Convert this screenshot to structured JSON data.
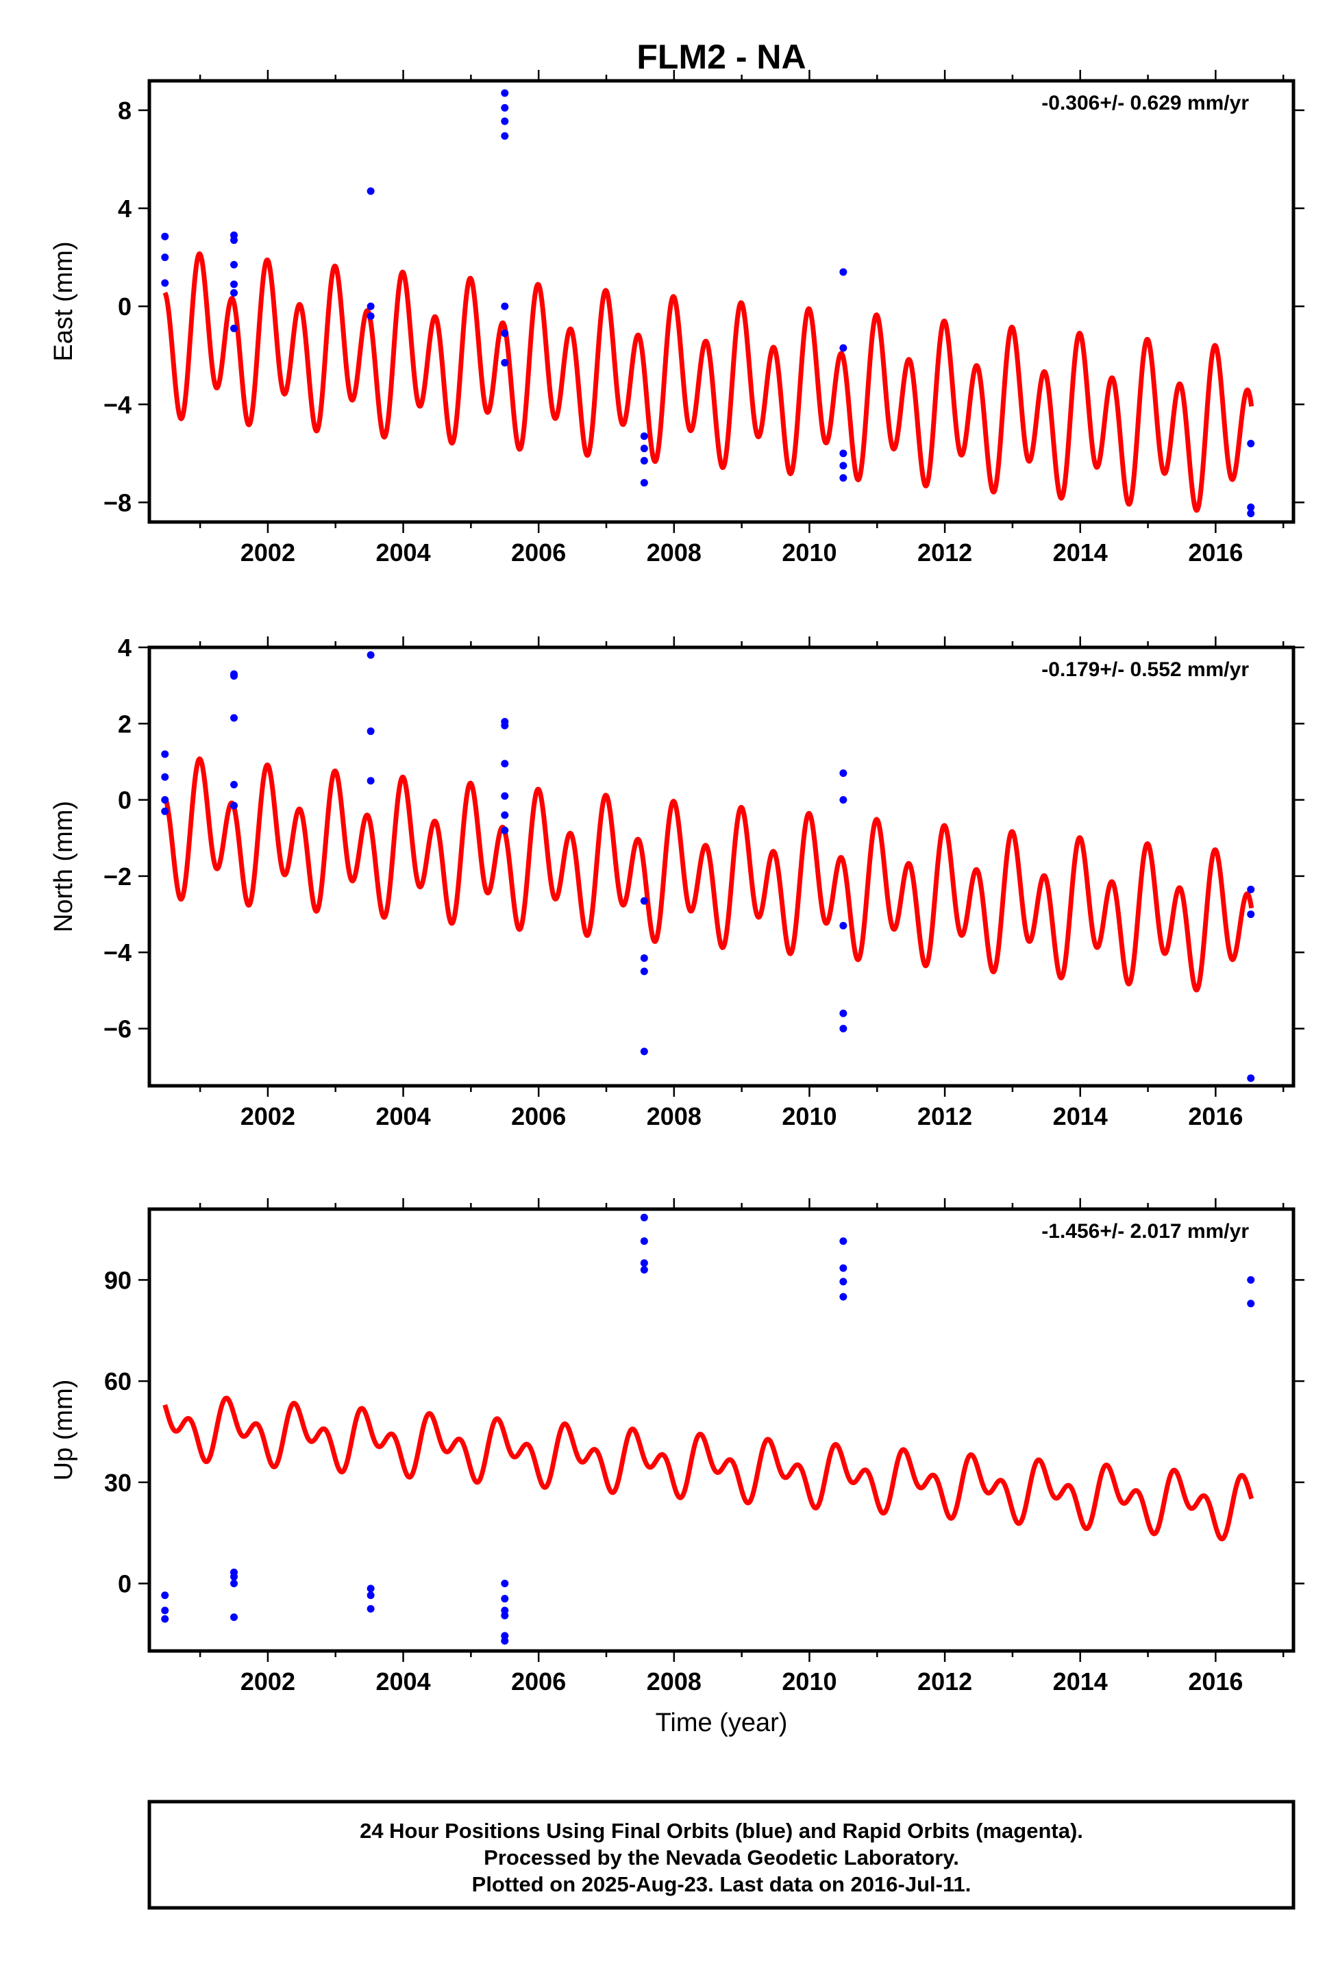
{
  "title": "FLM2 - NA",
  "colors": {
    "fit": "#ff0000",
    "final_orbits": "#0000ff",
    "rapid_orbits": "#ff00ff",
    "frame": "#000000"
  },
  "footer": {
    "line1": "24 Hour Positions Using Final Orbits (blue) and Rapid Orbits (magenta).",
    "line2": "Processed by the Nevada Geodetic Laboratory.",
    "line3": "Plotted on 2025-Aug-23. Last data on 2016-Jul-11."
  },
  "chart_data": [
    {
      "type": "scatter",
      "component": "east",
      "ylabel": "East (mm)",
      "xlabel": "",
      "rate_label": "-0.306+/- 0.629 mm/yr",
      "xlim": [
        2000.25,
        2017.15
      ],
      "ylim": [
        -8.8,
        9.2
      ],
      "xticks": [
        2002,
        2004,
        2006,
        2008,
        2010,
        2012,
        2014,
        2016
      ],
      "yticks": [
        -8,
        -4,
        0,
        4,
        8
      ],
      "fit": {
        "start": 2000.48,
        "end": 2016.53,
        "offset_start": -1.2,
        "offset_end": -5.2,
        "annual_amp": 1.1,
        "semiannual_amp": 2.6,
        "annual_phase": 1.0,
        "semiannual_phase": 1.8
      },
      "points": [
        [
          2000.48,
          2.85
        ],
        [
          2000.48,
          2.0
        ],
        [
          2000.48,
          0.95
        ],
        [
          2001.5,
          2.9
        ],
        [
          2001.5,
          2.7
        ],
        [
          2001.5,
          1.7
        ],
        [
          2001.5,
          0.9
        ],
        [
          2001.5,
          0.55
        ],
        [
          2001.5,
          -0.9
        ],
        [
          2003.52,
          4.7
        ],
        [
          2003.52,
          0.0
        ],
        [
          2003.52,
          -0.4
        ],
        [
          2005.5,
          8.7
        ],
        [
          2005.5,
          8.1
        ],
        [
          2005.5,
          7.55
        ],
        [
          2005.5,
          6.95
        ],
        [
          2005.5,
          0.0
        ],
        [
          2005.5,
          -1.1
        ],
        [
          2005.5,
          -2.3
        ],
        [
          2007.56,
          -5.3
        ],
        [
          2007.56,
          -5.8
        ],
        [
          2007.56,
          -6.3
        ],
        [
          2007.56,
          -7.2
        ],
        [
          2010.5,
          1.4
        ],
        [
          2010.5,
          -1.7
        ],
        [
          2010.5,
          -6.0
        ],
        [
          2010.5,
          -6.5
        ],
        [
          2010.5,
          -7.0
        ],
        [
          2016.52,
          -5.6
        ],
        [
          2016.52,
          -8.2
        ],
        [
          2016.52,
          -8.45
        ]
      ]
    },
    {
      "type": "scatter",
      "component": "north",
      "ylabel": "North (mm)",
      "xlabel": "",
      "rate_label": "-0.179+/- 0.552 mm/yr",
      "xlim": [
        2000.25,
        2017.15
      ],
      "ylim": [
        -7.5,
        4.0
      ],
      "xticks": [
        2002,
        2004,
        2006,
        2008,
        2010,
        2012,
        2014,
        2016
      ],
      "yticks": [
        -6,
        -4,
        -2,
        0,
        2,
        4
      ],
      "fit": {
        "start": 2000.48,
        "end": 2016.53,
        "offset_start": -0.75,
        "offset_end": -3.3,
        "annual_amp": 0.7,
        "semiannual_amp": 1.35,
        "annual_phase": 1.0,
        "semiannual_phase": 1.8
      },
      "points": [
        [
          2000.48,
          1.2
        ],
        [
          2000.48,
          0.6
        ],
        [
          2000.48,
          0.0
        ],
        [
          2000.48,
          -0.3
        ],
        [
          2001.5,
          3.3
        ],
        [
          2001.5,
          3.25
        ],
        [
          2001.5,
          2.15
        ],
        [
          2001.5,
          0.4
        ],
        [
          2001.5,
          -0.15
        ],
        [
          2003.52,
          3.8
        ],
        [
          2003.52,
          1.8
        ],
        [
          2003.52,
          0.5
        ],
        [
          2005.5,
          2.05
        ],
        [
          2005.5,
          1.95
        ],
        [
          2005.5,
          0.95
        ],
        [
          2005.5,
          0.1
        ],
        [
          2005.5,
          -0.4
        ],
        [
          2005.5,
          -0.8
        ],
        [
          2007.56,
          -2.65
        ],
        [
          2007.56,
          -4.15
        ],
        [
          2007.56,
          -4.5
        ],
        [
          2007.56,
          -6.6
        ],
        [
          2010.5,
          0.7
        ],
        [
          2010.5,
          0.0
        ],
        [
          2010.5,
          -3.3
        ],
        [
          2010.5,
          -5.6
        ],
        [
          2010.5,
          -6.0
        ],
        [
          2016.52,
          -2.35
        ],
        [
          2016.52,
          -3.0
        ],
        [
          2016.52,
          -7.3
        ]
      ]
    },
    {
      "type": "scatter",
      "component": "up",
      "ylabel": "Up (mm)",
      "xlabel": "Time (year)",
      "rate_label": "-1.456+/- 2.017 mm/yr",
      "xlim": [
        2000.25,
        2017.15
      ],
      "ylim": [
        -20,
        111
      ],
      "xticks": [
        2002,
        2004,
        2006,
        2008,
        2010,
        2012,
        2014,
        2016
      ],
      "yticks": [
        0,
        30,
        60,
        90
      ],
      "fit": {
        "start": 2000.48,
        "end": 2016.53,
        "offset_start": 47,
        "offset_end": 22.5,
        "annual_amp": 5.5,
        "semiannual_amp": 5.5,
        "annual_phase": 4.7,
        "semiannual_phase": 3.3
      },
      "points": [
        [
          2000.48,
          -3.5
        ],
        [
          2000.48,
          -8.0
        ],
        [
          2000.48,
          -10.5
        ],
        [
          2001.5,
          3.3
        ],
        [
          2001.5,
          2.0
        ],
        [
          2001.5,
          0.0
        ],
        [
          2001.5,
          -10.0
        ],
        [
          2003.52,
          -1.5
        ],
        [
          2003.52,
          -3.5
        ],
        [
          2003.52,
          -7.5
        ],
        [
          2005.5,
          0.0
        ],
        [
          2005.5,
          -4.5
        ],
        [
          2005.5,
          -8.0
        ],
        [
          2005.5,
          -9.5
        ],
        [
          2005.5,
          -15.5
        ],
        [
          2005.5,
          -17.0
        ],
        [
          2007.56,
          108.5
        ],
        [
          2007.56,
          101.5
        ],
        [
          2007.56,
          95.0
        ],
        [
          2007.56,
          93.0
        ],
        [
          2010.5,
          101.5
        ],
        [
          2010.5,
          93.5
        ],
        [
          2010.5,
          89.5
        ],
        [
          2010.5,
          85.0
        ],
        [
          2016.52,
          90.0
        ],
        [
          2016.52,
          83.0
        ]
      ]
    }
  ]
}
